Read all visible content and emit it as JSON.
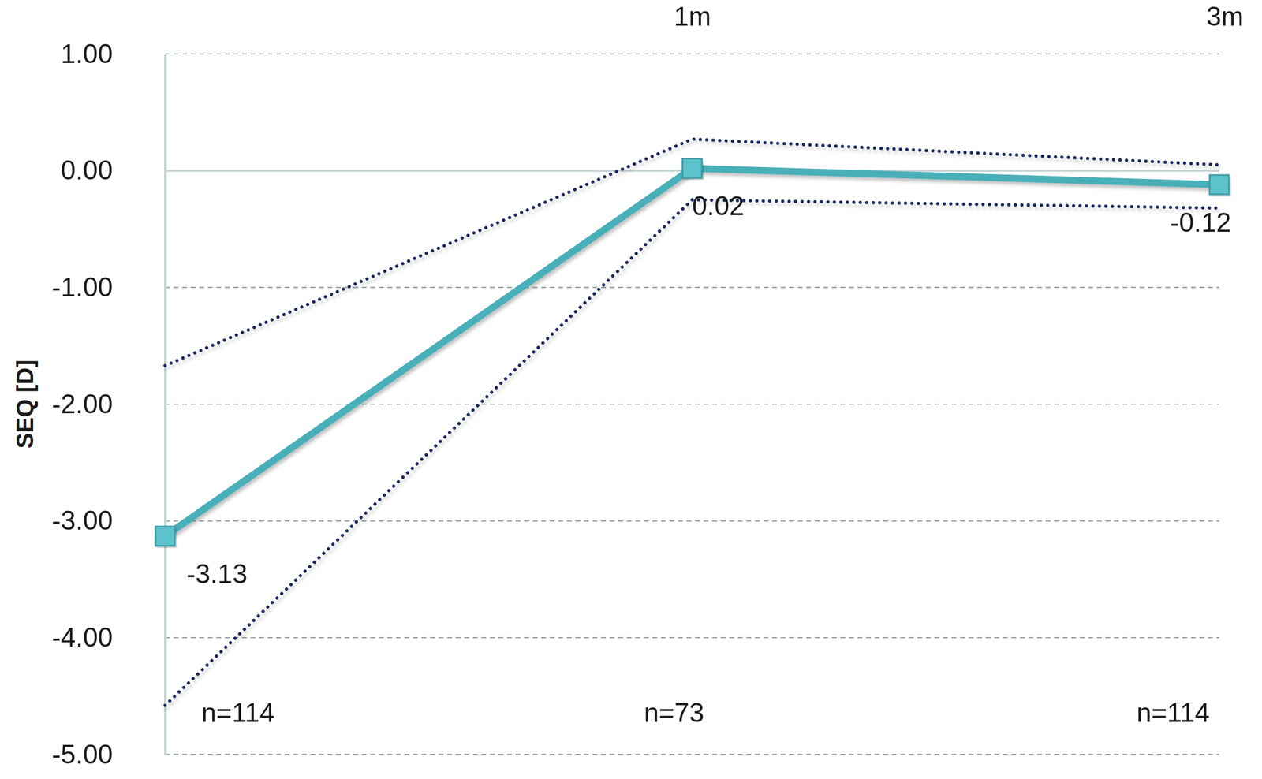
{
  "chart_data": {
    "type": "line",
    "y_label": "SEQ [D]",
    "categories": [
      null,
      "1m",
      "3m"
    ],
    "series": [
      {
        "values": [
          -3.13,
          0.02,
          -0.12
        ],
        "color": "#4aafb9",
        "marker": "square",
        "line_style": "solid",
        "data_labels": true
      },
      {
        "values": [
          -1.67,
          0.27,
          0.05
        ],
        "color": "#1f2b5e",
        "line_style": "dotted"
      },
      {
        "values": [
          -4.58,
          -0.25,
          -0.32
        ],
        "color": "#1f2b5e",
        "line_style": "dotted"
      }
    ],
    "annotations": [
      "n=114",
      "n=73",
      "n=114"
    ],
    "ylim": [
      -5,
      1
    ],
    "yticks": [
      {
        "value": -5,
        "label": "-5.00"
      },
      {
        "value": -4,
        "label": "-4.00"
      },
      {
        "value": -3,
        "label": "-3.00"
      },
      {
        "value": -2,
        "label": "-2.00"
      },
      {
        "value": -1,
        "label": "-1.00"
      },
      {
        "value": 0,
        "label": "0.00"
      },
      {
        "value": 1,
        "label": "1.00"
      }
    ],
    "grid": true
  }
}
